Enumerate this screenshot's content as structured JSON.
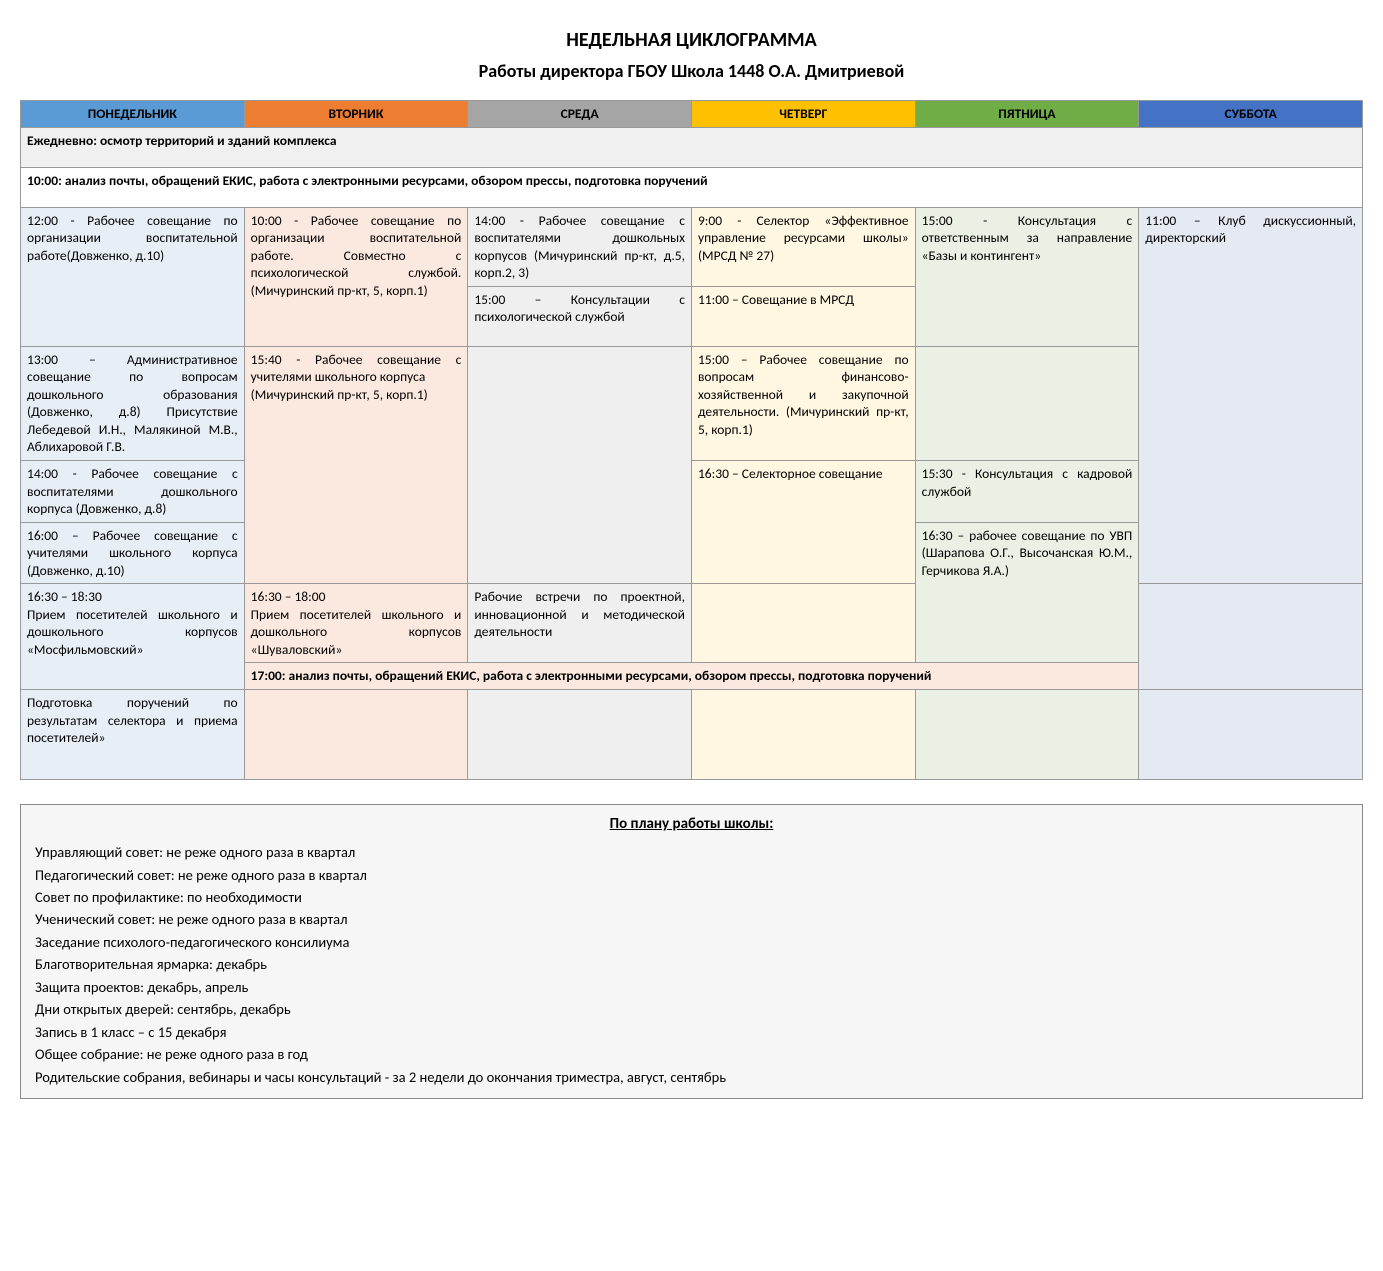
{
  "title": "НЕДЕЛЬНАЯ ЦИКЛОГРАММА",
  "subtitle": "Работы директора ГБОУ Школа 1448 О.А. Дмитриевой",
  "days": [
    {
      "label": "ПОНЕДЕЛЬНИК",
      "bg": "#5b9bd5",
      "tint": "#e8eef5"
    },
    {
      "label": "ВТОРНИК",
      "bg": "#ed7d31",
      "tint": "#fbe9df"
    },
    {
      "label": "СРЕДА",
      "bg": "#a5a5a5",
      "tint": "#efefef"
    },
    {
      "label": "ЧЕТВЕРГ",
      "bg": "#ffc000",
      "tint": "#fff7e1"
    },
    {
      "label": "ПЯТНИЦА",
      "bg": "#70ad47",
      "tint": "#eaf1e4"
    },
    {
      "label": "СУББОТА",
      "bg": "#4472c4",
      "tint": "#e4e9f2"
    }
  ],
  "daily_row": "Ежедневно: осмотр территорий и зданий комплекса",
  "ten_row": "10:00: анализ почты, обращений ЕКИС, работа с электронными ресурсами, обзором прессы, подготовка поручений",
  "seventeen_row": "17:00: анализ почты, обращений ЕКИС, работа с электронными ресурсами, обзором прессы, подготовка поручений",
  "cells": {
    "mon_r1": "12:00 - Рабочее совещание по организации воспитательной работе(Довженко, д.10)",
    "tue_r1": "10:00 - Рабочее совещание по организации воспитательной работе. Совместно с психологической службой. (Мичуринский пр-кт, 5, корп.1)",
    "wed_r1a": "14:00 - Рабочее совещание с воспитателями дошкольных корпусов (Мичуринский пр-кт, д.5, корп.2, 3)",
    "wed_r1b": "15:00 – Консультации с психологической службой",
    "thu_r1a": "9:00 - Селектор «Эффективное управление ресурсами школы» (МРСД № 27)",
    "thu_r1b": "11:00 – Совещание в МРСД",
    "fri_r1": "15:00 - Консультация с ответственным за направление «Базы и контингент»",
    "sat_r1": "11:00 – Клуб дискуссионный, директорский",
    "mon_r2": "13:00 – Административное совещание по вопросам дошкольного образования (Довженко, д.8) Присутствие Лебедевой И.Н., Малякиной М.В., Аблихаровой Г.В.",
    "tue_r2": "15:40 - Рабочее совещание с учителями школьного корпуса\n(Мичуринский пр-кт, 5, корп.1)",
    "thu_r2": "15:00 – Рабочее совещание по вопросам финансово-хозяйственной и закупочной деятельности. (Мичуринский пр-кт, 5, корп.1)",
    "mon_r3": "14:00 - Рабочее совещание с воспитателями дошкольного корпуса (Довженко, д.8)",
    "thu_r3": "16:30 – Селекторное совещание",
    "fri_r3": "15:30 - Консультация с кадровой службой",
    "mon_r4": "16:00 – Рабочее совещание с учителями школьного корпуса (Довженко, д.10)",
    "fri_r4": "16:30 – рабочее совещание по УВП (Шарапова О.Г., Высочанская Ю.М., Герчикова Я.А.)",
    "mon_r5": "16:30 – 18:30\nПрием посетителей школьного и дошкольного корпусов «Мосфильмовский»",
    "tue_r5": "16:30 – 18:00\nПрием посетителей школьного и дошкольного корпусов «Шуваловский»",
    "wed_r5": "Рабочие встречи по проектной, инновационной и методической деятельности",
    "mon_r6": "Подготовка поручений по результатам селектора и приема посетителей»"
  },
  "plan_title": "По плану работы школы:",
  "plan_lines": [
    "Управляющий совет: не реже одного раза в квартал",
    "Педагогический совет: не реже одного раза в квартал",
    "Совет по профилактике: по необходимости",
    "Ученический совет: не реже одного раза в квартал",
    "Заседание психолого-педагогического консилиума",
    "Благотворительная ярмарка: декабрь",
    "Защита проектов: декабрь, апрель",
    "Дни открытых дверей: сентябрь, декабрь",
    "Запись в 1 класс – с 15 декабря",
    "Общее собрание: не реже одного раза в год",
    "Родительские собрания, вебинары и часы консультаций  -  за 2 недели до окончания триместра, август, сентябрь"
  ]
}
